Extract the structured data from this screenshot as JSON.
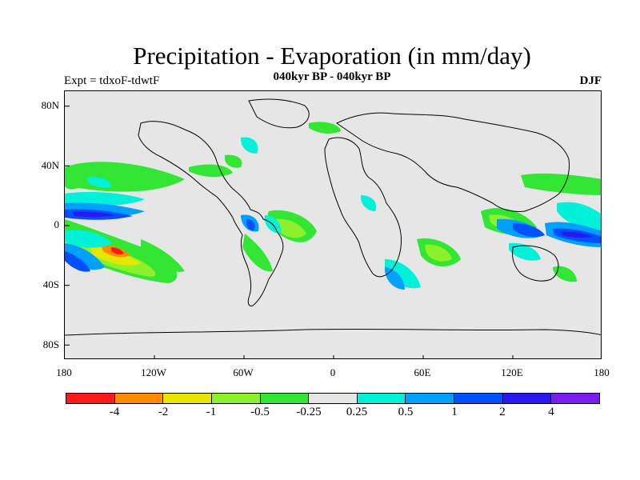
{
  "title": "Precipitation - Evaporation (in mm/day)",
  "subtitle": "040kyr BP - 040kyr BP",
  "experiment": "Expt = tdxoF-tdwtF",
  "season": "DJF",
  "lat_labels": [
    "80N",
    "40N",
    "0",
    "40S",
    "80S"
  ],
  "lon_labels": [
    "180",
    "120W",
    "60W",
    "0",
    "60E",
    "120E",
    "180"
  ],
  "colorbar": {
    "labels": [
      "-4",
      "-2",
      "-1",
      "-0.5",
      "-0.25",
      "0.25",
      "0.5",
      "1",
      "2",
      "4"
    ],
    "colors": [
      "#ff1a1a",
      "#ff8c00",
      "#e6e600",
      "#8cf02a",
      "#33e633",
      "#e6e6e6",
      "#00f0d8",
      "#00a0ff",
      "#0050ff",
      "#2a18f0",
      "#7a1ef0"
    ]
  },
  "colors": {
    "background": "#e6e6e6",
    "coast": "#000000"
  }
}
